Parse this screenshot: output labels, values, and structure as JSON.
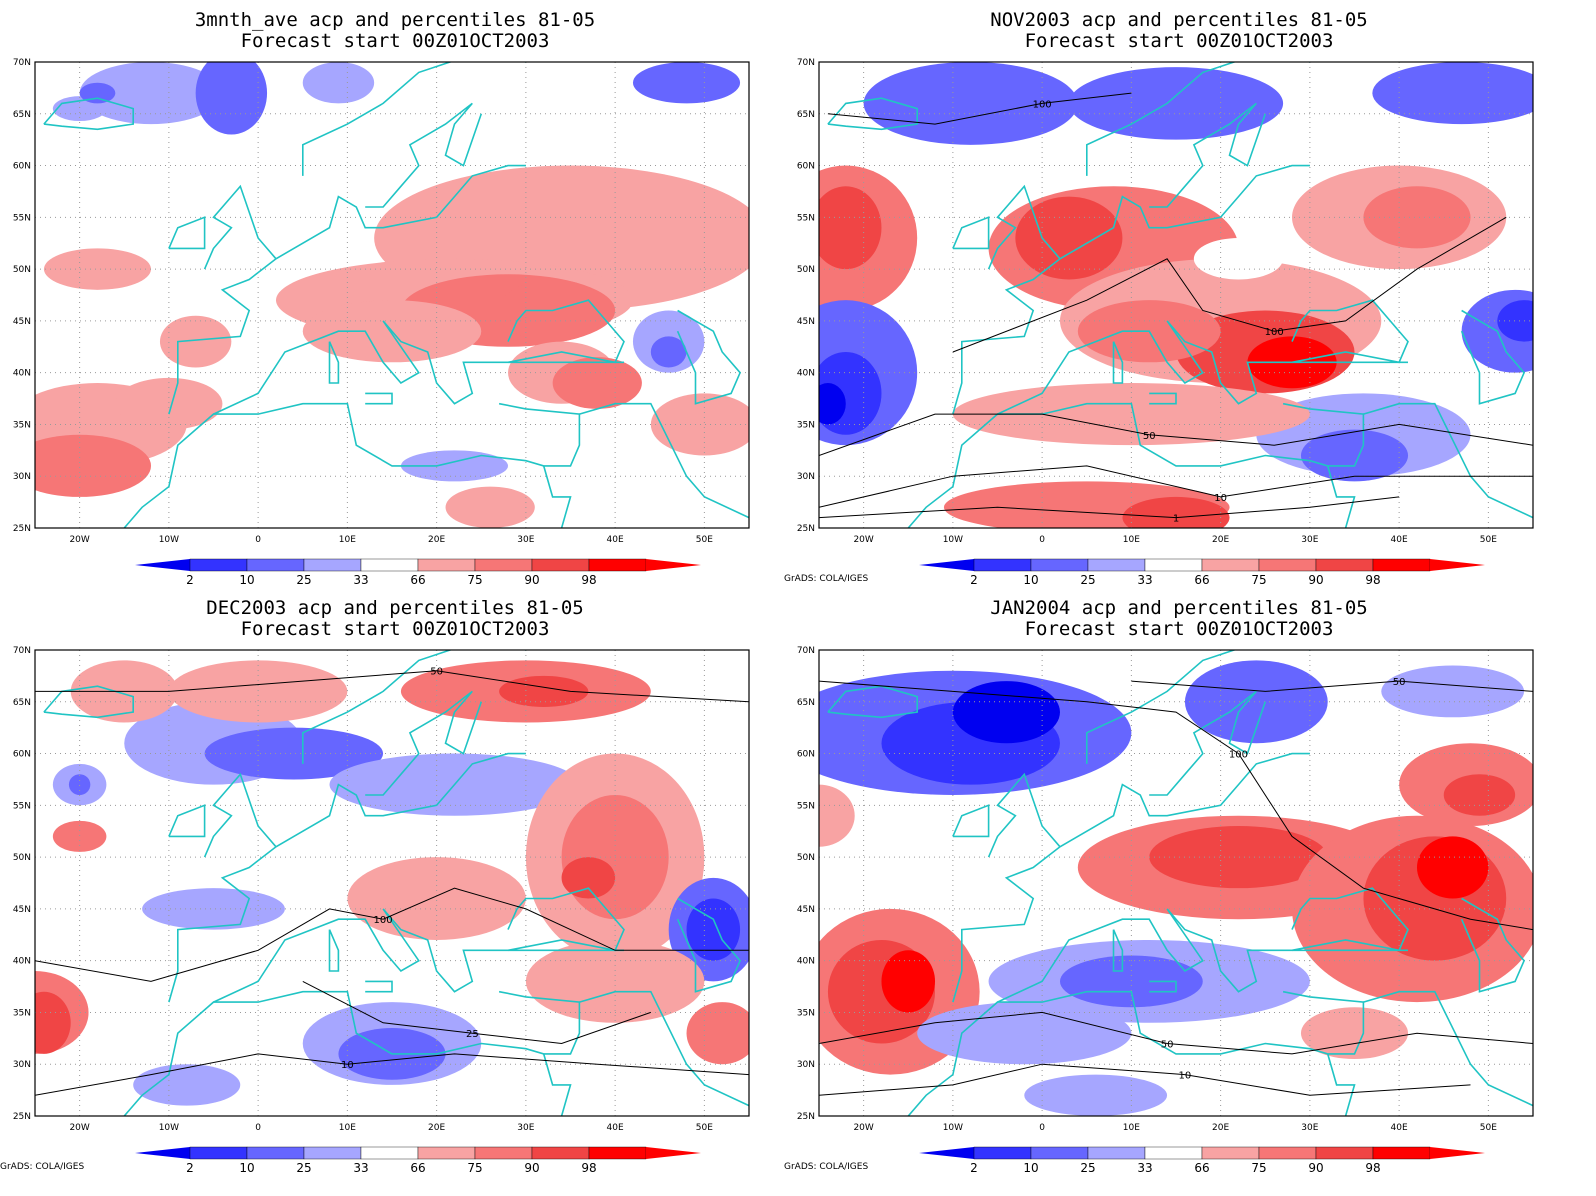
{
  "colors": {
    "b1": "#0000f0",
    "b2": "#3333ff",
    "b3": "#6666ff",
    "b4": "#a6a6ff",
    "w": "#ffffff",
    "r1": "#f8a3a3",
    "r2": "#f67676",
    "r3": "#f04545",
    "r4": "#ff0000",
    "coast": "#20c4c4",
    "contour": "#000000",
    "grid": "#9a9a9a"
  },
  "axes": {
    "lon_ticks": [
      "20W",
      "10W",
      "0",
      "10E",
      "20E",
      "30E",
      "40E",
      "50E"
    ],
    "lat_ticks": [
      "70N",
      "65N",
      "60N",
      "55N",
      "50N",
      "45N",
      "40N",
      "35N",
      "30N",
      "25N"
    ]
  },
  "colorbar_labels": [
    "2",
    "10",
    "25",
    "33",
    "66",
    "75",
    "90",
    "98"
  ],
  "credit": "GrADS: COLA/IGES",
  "panels": [
    {
      "title1": "3mnth_ave acp and percentiles 81-05",
      "title2": "Forecast start 00Z01OCT2003",
      "has_contours": false,
      "credit": ""
    },
    {
      "title1": "NOV2003 acp and percentiles 81-05",
      "title2": "Forecast start 00Z01OCT2003",
      "has_contours": true,
      "credit": "GrADS: COLA/IGES"
    },
    {
      "title1": "DEC2003 acp and percentiles 81-05",
      "title2": "Forecast start 00Z01OCT2003",
      "has_contours": true,
      "credit": "GrADS: COLA/IGES"
    },
    {
      "title1": "JAN2004 acp and percentiles 81-05",
      "title2": "Forecast start 00Z01OCT2003",
      "has_contours": true,
      "credit": "GrADS: COLA/IGES"
    }
  ]
}
